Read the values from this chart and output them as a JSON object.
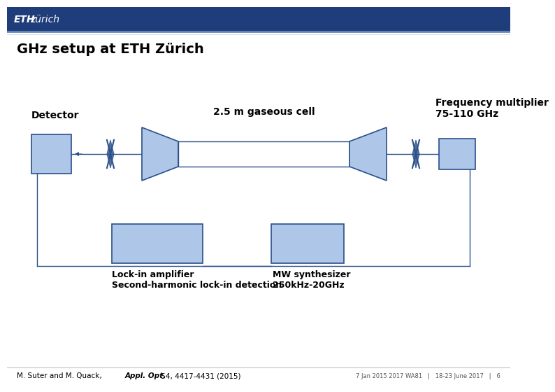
{
  "title": "GHz setup at ETH Zürich",
  "header_color": "#1f3d7a",
  "eth_bold": "ETH",
  "eth_normal": "zürich",
  "bg_color": "#ffffff",
  "box_fill": "#aec6e8",
  "box_edge": "#2a4f8a",
  "cell_fill": "#ffffff",
  "cell_edge": "#2a4f8a",
  "lens_fill": "#2a4f8a",
  "line_color": "#2a4f8a",
  "detector_label": "Detector",
  "cell_label": "2.5 m gaseous cell",
  "freq_label": "Frequency multiplier\n75-110 GHz",
  "lockin_label": "Lock-in amplifier\nSecond-harmonic lock-in detection",
  "mw_label": "MW synthesizer\n250kHz-20GHz",
  "citation": "M. Suter and M. Quack, ",
  "citation_italic": "Appl. Opt.",
  "citation_rest": " 54, 4417-4431 (2015)",
  "slide_info": "7 Jan 2015 2017 WA81   |   18-23 June 2017   |   6"
}
